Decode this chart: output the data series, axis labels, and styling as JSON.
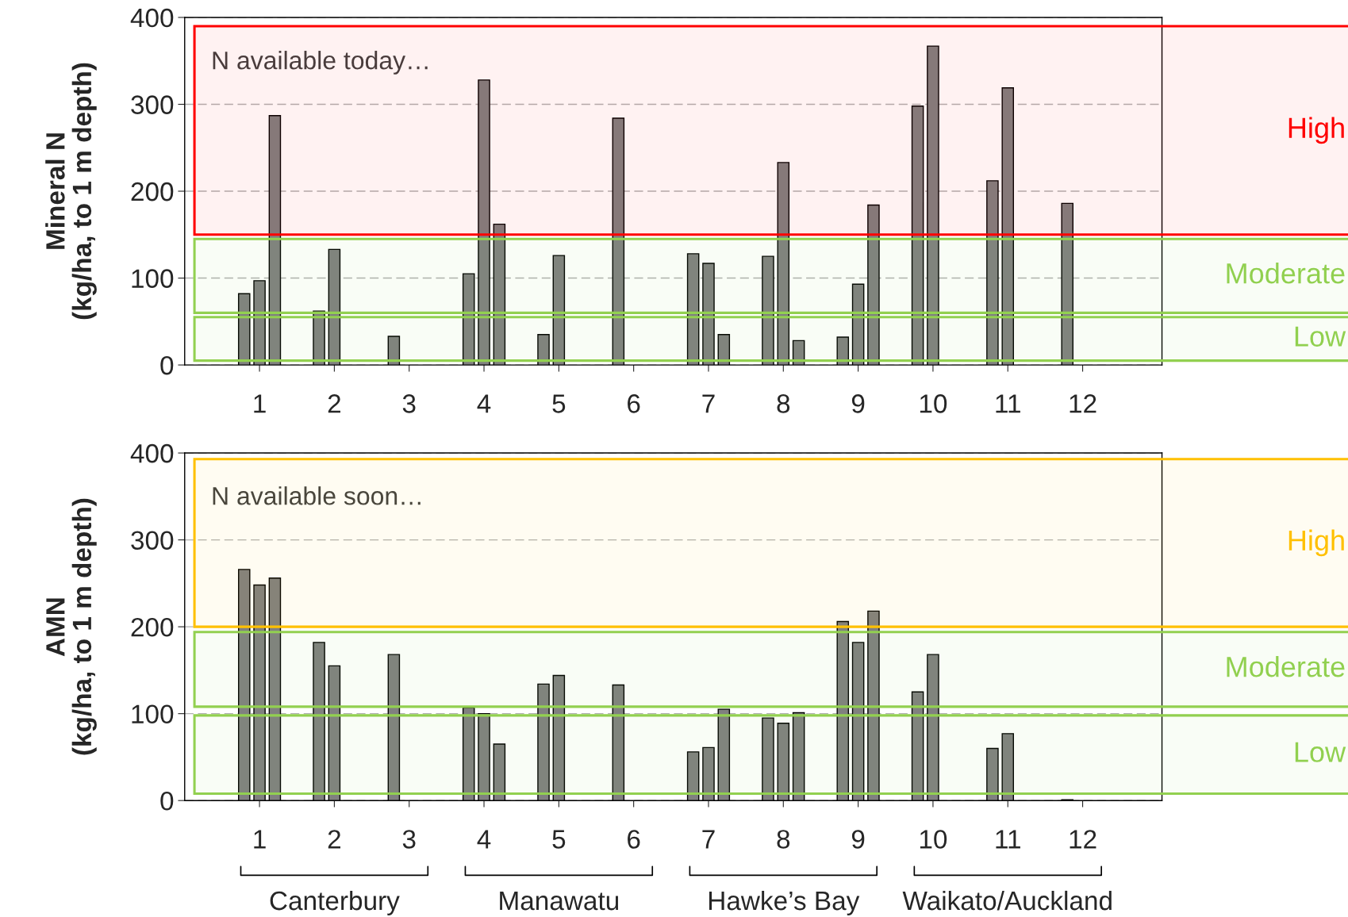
{
  "chart_data": [
    {
      "type": "bar",
      "ylabel": "Mineral N\n(kg/ha, to 1 m depth)",
      "categories": [
        "1",
        "2",
        "3",
        "4",
        "5",
        "6",
        "7",
        "8",
        "9",
        "10",
        "11",
        "12"
      ],
      "series": [
        {
          "color": "#808080",
          "values": [
            82,
            62,
            33,
            105,
            35,
            284,
            128,
            125,
            32,
            298,
            212,
            186
          ]
        },
        {
          "color": "#808080",
          "values": [
            97,
            133,
            null,
            328,
            126,
            null,
            117,
            233,
            93,
            367,
            319,
            null
          ]
        },
        {
          "color": "#808080",
          "values": [
            287,
            null,
            null,
            162,
            null,
            null,
            35,
            28,
            184,
            null,
            null,
            null
          ]
        }
      ],
      "ylim": [
        0,
        400
      ],
      "yticks": [
        0,
        100,
        200,
        300,
        400
      ],
      "grid": "y",
      "bands": [
        {
          "axis": "y",
          "from": 150,
          "to": 390,
          "label": "High",
          "color": "#ff0000"
        },
        {
          "axis": "y",
          "from": 60,
          "to": 145,
          "label": "Moderate",
          "color": "#92d050"
        },
        {
          "axis": "y",
          "from": 5,
          "to": 55,
          "label": "Low",
          "color": "#92d050"
        }
      ],
      "annotations": [
        "N available today…"
      ]
    },
    {
      "type": "bar",
      "ylabel": "AMN\n(kg/ha, to 1 m depth)",
      "categories": [
        "1",
        "2",
        "3",
        "4",
        "5",
        "6",
        "7",
        "8",
        "9",
        "10",
        "11",
        "12"
      ],
      "series": [
        {
          "color": "#808080",
          "values": [
            266,
            182,
            168,
            107,
            134,
            133,
            56,
            95,
            206,
            125,
            60,
            1
          ]
        },
        {
          "color": "#808080",
          "values": [
            248,
            155,
            null,
            100,
            144,
            null,
            61,
            89,
            182,
            168,
            77,
            null
          ]
        },
        {
          "color": "#808080",
          "values": [
            256,
            null,
            null,
            65,
            null,
            null,
            105,
            101,
            218,
            null,
            null,
            null
          ]
        }
      ],
      "ylim": [
        0,
        400
      ],
      "yticks": [
        0,
        100,
        200,
        300,
        400
      ],
      "grid": "y",
      "bands": [
        {
          "axis": "y",
          "from": 200,
          "to": 393,
          "label": "High",
          "color": "#ffc000"
        },
        {
          "axis": "y",
          "from": 108,
          "to": 194,
          "label": "Moderate",
          "color": "#92d050"
        },
        {
          "axis": "y",
          "from": 8,
          "to": 98,
          "label": "Low",
          "color": "#92d050"
        }
      ],
      "annotations": [
        "N available soon…",
        "Canterbury",
        "Manawatu",
        "Hawke’s Bay",
        "Waikato/Auckland"
      ]
    }
  ]
}
